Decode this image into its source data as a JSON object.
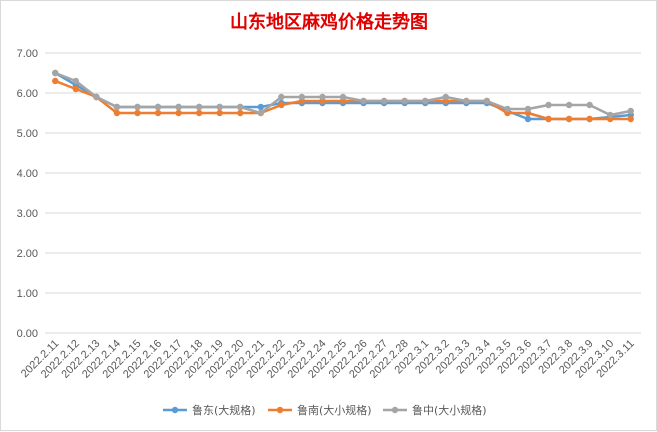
{
  "chart_data": {
    "type": "line",
    "title": "山东地区麻鸡价格走势图",
    "xlabel": "",
    "ylabel": "",
    "ylim": [
      0,
      7
    ],
    "yticks": [
      "0.00",
      "1.00",
      "2.00",
      "3.00",
      "4.00",
      "5.00",
      "6.00",
      "7.00"
    ],
    "grid": true,
    "legend_position": "bottom",
    "categories": [
      "2022.2.11",
      "2022.2.12",
      "2022.2.13",
      "2022.2.14",
      "2022.2.15",
      "2022.2.16",
      "2022.2.17",
      "2022.2.18",
      "2022.2.19",
      "2022.2.20",
      "2022.2.21",
      "2022.2.22",
      "2022.2.23",
      "2022.2.24",
      "2022.2.25",
      "2022.2.26",
      "2022.2.27",
      "2022.2.28",
      "2022.3.1",
      "2022.3.2",
      "2022.3.3",
      "2022.3.4",
      "2022.3.5",
      "2022.3.6",
      "2022.3.7",
      "2022.3.8",
      "2022.3.9",
      "2022.3.10",
      "2022.3.11"
    ],
    "series": [
      {
        "name": "鲁东(大规格)",
        "color": "#5b9bd5",
        "values": [
          6.5,
          6.2,
          5.9,
          5.65,
          5.65,
          5.65,
          5.65,
          5.65,
          5.65,
          5.65,
          5.65,
          5.75,
          5.75,
          5.75,
          5.75,
          5.75,
          5.75,
          5.75,
          5.75,
          5.75,
          5.75,
          5.75,
          5.55,
          5.35,
          5.35,
          5.35,
          5.35,
          5.4,
          5.45
        ]
      },
      {
        "name": "鲁南(大小规格)",
        "color": "#ed7d31",
        "values": [
          6.3,
          6.1,
          5.9,
          5.5,
          5.5,
          5.5,
          5.5,
          5.5,
          5.5,
          5.5,
          5.5,
          5.7,
          5.8,
          5.8,
          5.8,
          5.8,
          5.8,
          5.8,
          5.8,
          5.8,
          5.8,
          5.8,
          5.5,
          5.5,
          5.35,
          5.35,
          5.35,
          5.35,
          5.35
        ]
      },
      {
        "name": "鲁中(大小规格)",
        "color": "#a5a5a5",
        "values": [
          6.5,
          6.3,
          5.9,
          5.65,
          5.65,
          5.65,
          5.65,
          5.65,
          5.65,
          5.65,
          5.5,
          5.9,
          5.9,
          5.9,
          5.9,
          5.8,
          5.8,
          5.8,
          5.8,
          5.9,
          5.8,
          5.8,
          5.6,
          5.6,
          5.7,
          5.7,
          5.7,
          5.45,
          5.55
        ]
      }
    ]
  }
}
